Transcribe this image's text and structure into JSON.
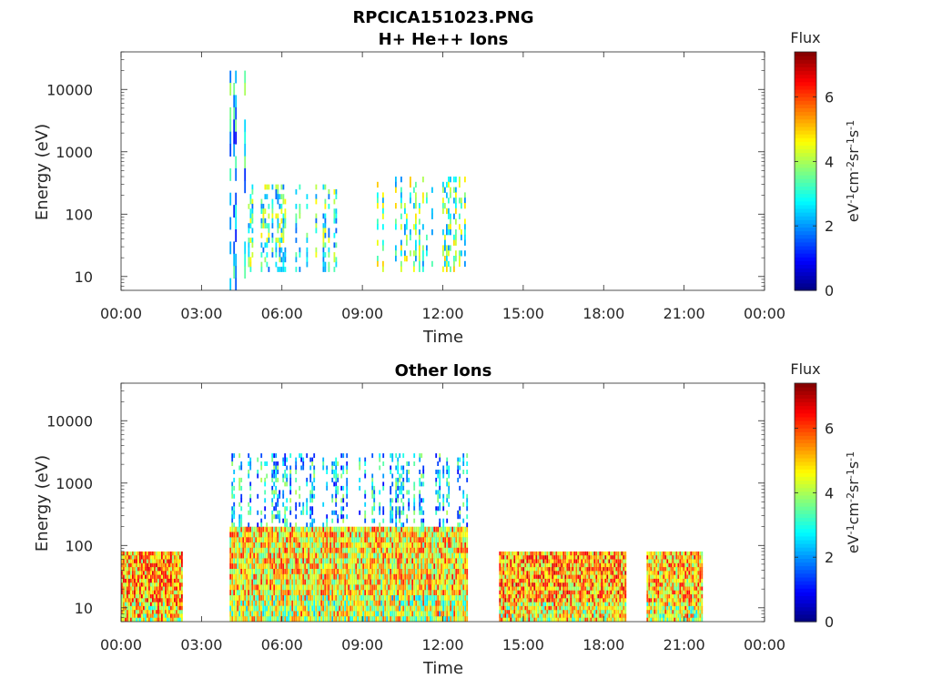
{
  "figure_title": "RPCICA151023.PNG",
  "colorbar": {
    "title": "Flux",
    "unit_parts": [
      "eV",
      "-1",
      "cm",
      "-2",
      "sr",
      "-1",
      "s",
      "-1"
    ],
    "ticks": [
      "0",
      "2",
      "4",
      "6"
    ],
    "range": [
      0,
      7.4
    ],
    "colormap": "jet"
  },
  "chart_data": [
    {
      "type": "heatmap",
      "title": "H+ He++ Ions",
      "xlabel": "Time",
      "ylabel": "Energy (eV)",
      "x_ticks": [
        "00:00",
        "03:00",
        "06:00",
        "09:00",
        "12:00",
        "15:00",
        "18:00",
        "21:00",
        "00:00"
      ],
      "y_ticks": [
        "10",
        "100",
        "1000",
        "10000"
      ],
      "xlim_hours": [
        0,
        24
      ],
      "ylim": [
        6,
        40000
      ],
      "yscale": "log",
      "value_range": [
        0,
        7.4
      ],
      "regions": [
        {
          "t_start": 4.05,
          "t_end": 4.6,
          "e_min": 6,
          "e_max": 20000,
          "value": 2.4
        },
        {
          "t_start": 4.6,
          "t_end": 8.0,
          "e_min": 12,
          "e_max": 300,
          "value": 3.2
        },
        {
          "t_start": 9.2,
          "t_end": 12.9,
          "e_min": 12,
          "e_max": 400,
          "value": 3.5
        }
      ]
    },
    {
      "type": "heatmap",
      "title": "Other Ions",
      "xlabel": "Time",
      "ylabel": "Energy (eV)",
      "x_ticks": [
        "00:00",
        "03:00",
        "06:00",
        "09:00",
        "12:00",
        "15:00",
        "18:00",
        "21:00",
        "00:00"
      ],
      "y_ticks": [
        "10",
        "100",
        "1000",
        "10000"
      ],
      "xlim_hours": [
        0,
        24
      ],
      "ylim": [
        6,
        40000
      ],
      "yscale": "log",
      "value_range": [
        0,
        7.4
      ],
      "regions": [
        {
          "t_start": 0.0,
          "t_end": 2.3,
          "e_min": 6,
          "e_max": 80,
          "value": 5.2
        },
        {
          "t_start": 4.05,
          "t_end": 12.9,
          "e_min": 6,
          "e_max": 200,
          "value": 4.8
        },
        {
          "t_start": 4.05,
          "t_end": 12.9,
          "e_min": 200,
          "e_max": 3000,
          "value": 2.5
        },
        {
          "t_start": 14.1,
          "t_end": 18.8,
          "e_min": 6,
          "e_max": 80,
          "value": 5.3
        },
        {
          "t_start": 19.6,
          "t_end": 21.7,
          "e_min": 6,
          "e_max": 80,
          "value": 5.0
        }
      ]
    }
  ]
}
